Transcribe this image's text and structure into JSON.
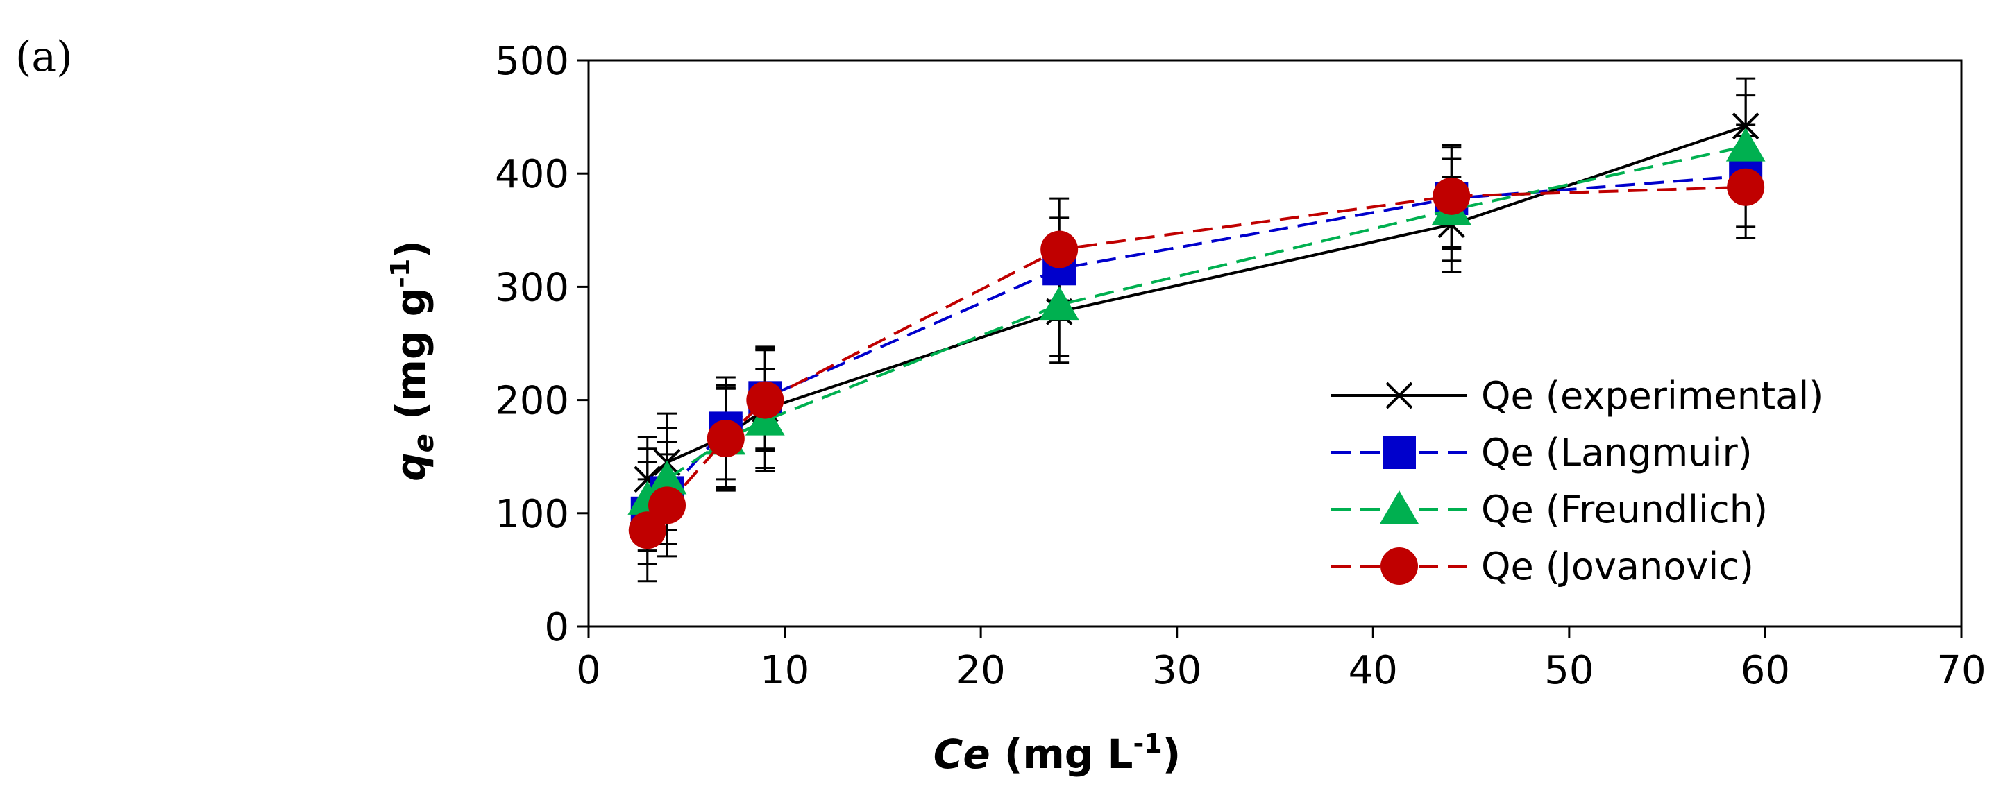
{
  "panel_label": "(a)",
  "chart_data": {
    "type": "line",
    "xlabel": {
      "main": "Ce",
      "unit_pre": " (mg L",
      "sup": "-1",
      "unit_post": ")"
    },
    "ylabel": {
      "main": "q",
      "sub": "e",
      "unit_pre": " (mg g",
      "sup": "-1",
      "unit_post": ")"
    },
    "xlim": [
      0,
      70
    ],
    "ylim": [
      0,
      500
    ],
    "xticks": [
      0,
      10,
      20,
      30,
      40,
      50,
      60,
      70
    ],
    "yticks": [
      0,
      100,
      200,
      300,
      400,
      500
    ],
    "x": [
      3,
      4,
      7,
      9,
      24,
      44,
      59
    ],
    "legend_position": "bottom-right",
    "series": [
      {
        "name": "Qe (experimental)",
        "marker": "x",
        "color": "#000000",
        "dash": "solid",
        "values": [
          130,
          145,
          168,
          192,
          278,
          355,
          442
        ],
        "errors": [
          37,
          43,
          45,
          52,
          45,
          42,
          42
        ]
      },
      {
        "name": "Qe (Langmuir)",
        "marker": "square",
        "color": "#0000CC",
        "dash": "dashed",
        "values": [
          100,
          118,
          175,
          202,
          316,
          378,
          398
        ],
        "errors": [
          45,
          45,
          45,
          45,
          45,
          45,
          45
        ]
      },
      {
        "name": "Qe (Freundlich)",
        "marker": "triangle",
        "color": "#00B050",
        "dash": "dashed",
        "values": [
          112,
          130,
          165,
          182,
          284,
          368,
          424
        ],
        "errors": [
          45,
          45,
          45,
          45,
          45,
          45,
          45
        ]
      },
      {
        "name": "Qe (Jovanovic)",
        "marker": "circle",
        "color": "#C00000",
        "dash": "dashed",
        "values": [
          85,
          107,
          166,
          200,
          333,
          380,
          388
        ],
        "errors": [
          45,
          45,
          45,
          45,
          45,
          45,
          45
        ]
      }
    ]
  }
}
